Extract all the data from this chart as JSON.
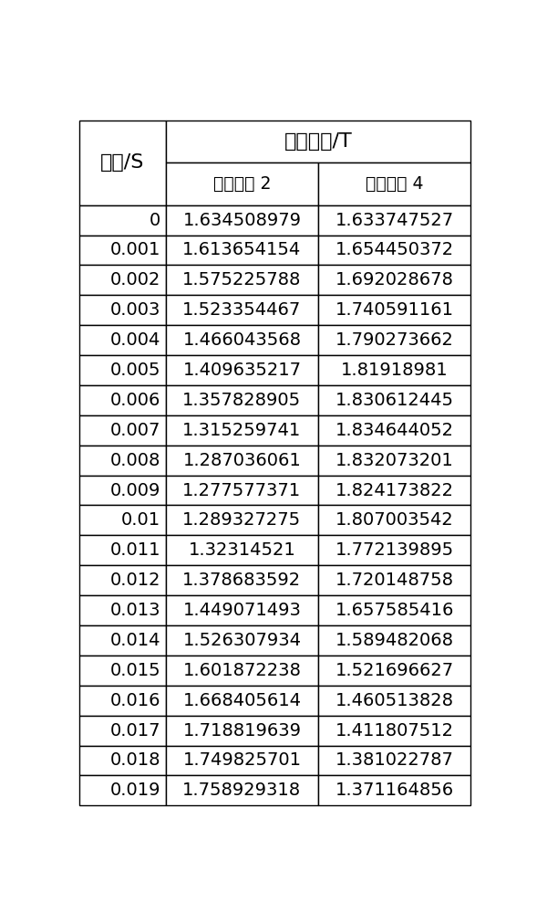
{
  "header_row1_col0": "时间/S",
  "header_row1_col12": "磁通密度/T",
  "header_row2_col1": "直流绕组 2",
  "header_row2_col2": "直流绕组 4",
  "time_labels": [
    "0",
    "0.001",
    "0.002",
    "0.003",
    "0.004",
    "0.005",
    "0.006",
    "0.007",
    "0.008",
    "0.009",
    "0.01",
    "0.011",
    "0.012",
    "0.013",
    "0.014",
    "0.015",
    "0.016",
    "0.017",
    "0.018",
    "0.019"
  ],
  "col2": [
    "1.634508979",
    "1.613654154",
    "1.575225788",
    "1.523354467",
    "1.466043568",
    "1.409635217",
    "1.357828905",
    "1.315259741",
    "1.287036061",
    "1.277577371",
    "1.289327275",
    "1.32314521",
    "1.378683592",
    "1.449071493",
    "1.526307934",
    "1.601872238",
    "1.668405614",
    "1.718819639",
    "1.749825701",
    "1.758929318"
  ],
  "col3": [
    "1.633747527",
    "1.654450372",
    "1.692028678",
    "1.740591161",
    "1.790273662",
    "1.81918981",
    "1.830612445",
    "1.834644052",
    "1.832073201",
    "1.824173822",
    "1.807003542",
    "1.772139895",
    "1.720148758",
    "1.657585416",
    "1.589482068",
    "1.521696627",
    "1.460513828",
    "1.411807512",
    "1.381022787",
    "1.371164856"
  ],
  "bg_color": "#ffffff",
  "line_color": "#000000",
  "text_color": "#000000",
  "font_size": 14,
  "header_font_size": 16
}
